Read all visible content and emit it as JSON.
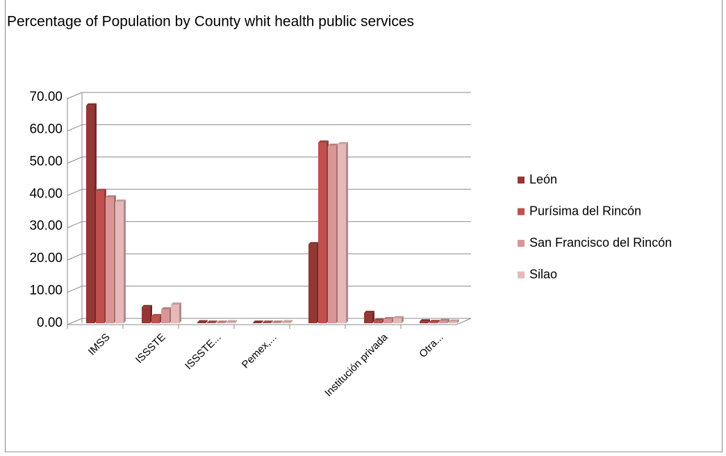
{
  "chart_data": {
    "type": "bar",
    "title": "Percentage of Population by County whit health public services",
    "categories": [
      "IMSS",
      "ISSSTE",
      "ISSSTE...",
      "Pemex,...",
      null,
      "Institución privada",
      "Otra..."
    ],
    "series": [
      {
        "name": "León",
        "color": "#953735",
        "values": [
          67.5,
          5.0,
          0.3,
          0.2,
          24.5,
          3.2,
          0.6
        ]
      },
      {
        "name": "Purísima del Rincón",
        "color": "#c0504d",
        "values": [
          41.0,
          2.2,
          0.2,
          0.2,
          56.0,
          0.8,
          0.4
        ]
      },
      {
        "name": "San Francisco del Rincón",
        "color": "#d99694",
        "values": [
          39.0,
          4.3,
          0.2,
          0.2,
          55.0,
          1.3,
          0.7
        ]
      },
      {
        "name": "Silao",
        "color": "#e6b9b8",
        "values": [
          37.7,
          5.8,
          0.3,
          0.3,
          55.5,
          1.6,
          0.5
        ]
      }
    ],
    "ylim": [
      0,
      70
    ],
    "yticks": [
      {
        "value": 0,
        "label": "0.00"
      },
      {
        "value": 10,
        "label": "10.00"
      },
      {
        "value": 20,
        "label": "20.00"
      },
      {
        "value": 30,
        "label": "30.00"
      },
      {
        "value": 40,
        "label": "40.00"
      },
      {
        "value": 50,
        "label": "50.00"
      },
      {
        "value": 60,
        "label": "60.00"
      },
      {
        "value": 70,
        "label": "70.00"
      }
    ],
    "grid": true,
    "legend": "right"
  }
}
